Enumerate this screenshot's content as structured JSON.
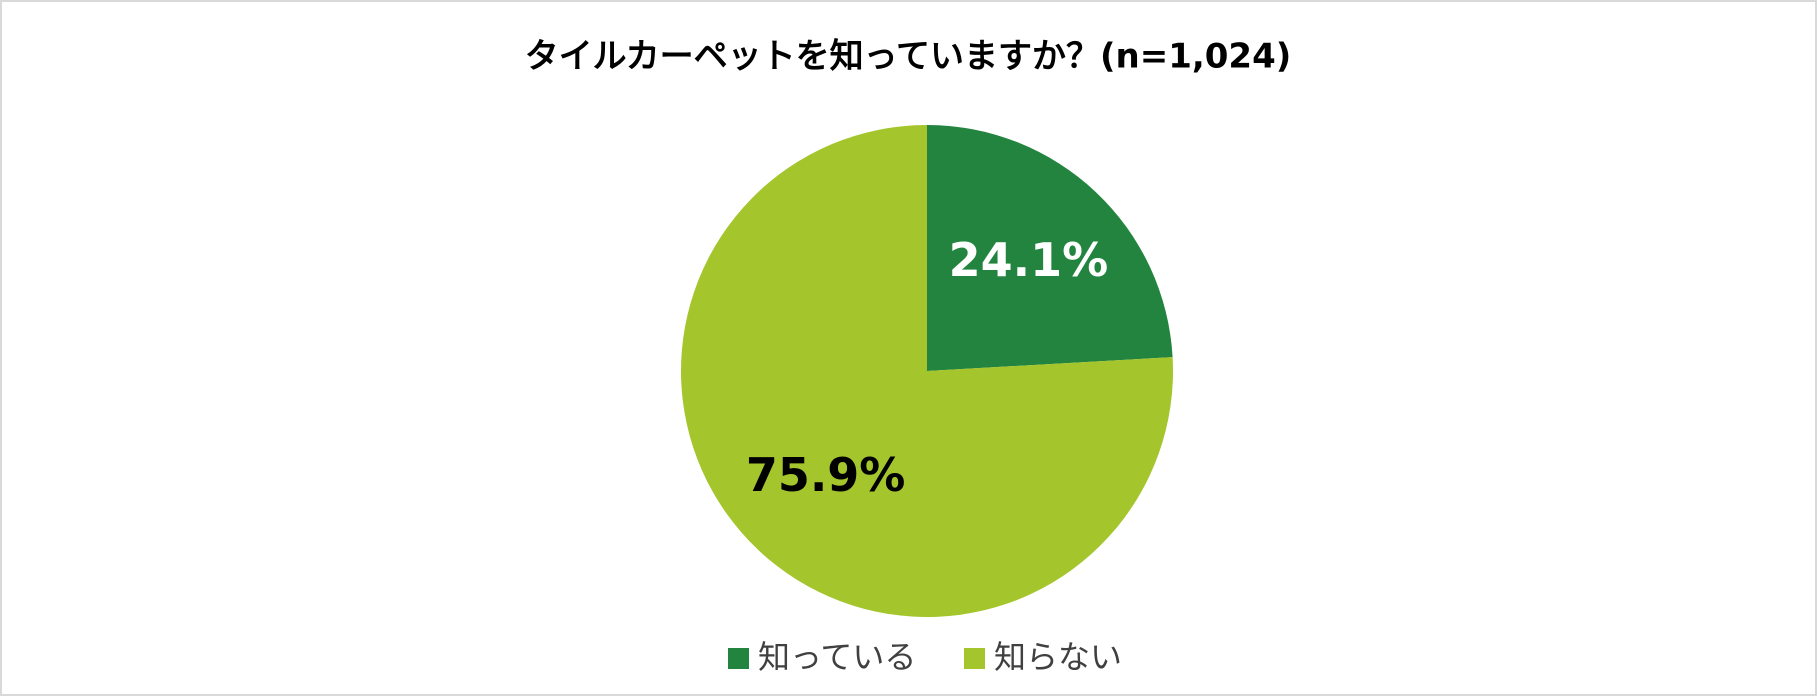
{
  "chart_data": {
    "type": "pie",
    "title": "タイルカーペットを知っていますか？(n=1,024)",
    "categories": [
      "知っている",
      "知らない"
    ],
    "values": [
      24.1,
      75.9
    ],
    "value_labels": [
      "24.1%",
      "75.9%"
    ],
    "colors": [
      "#23843f",
      "#a4c52b"
    ],
    "label_colors": [
      "#ffffff",
      "#000000"
    ],
    "legend": "bottom"
  }
}
